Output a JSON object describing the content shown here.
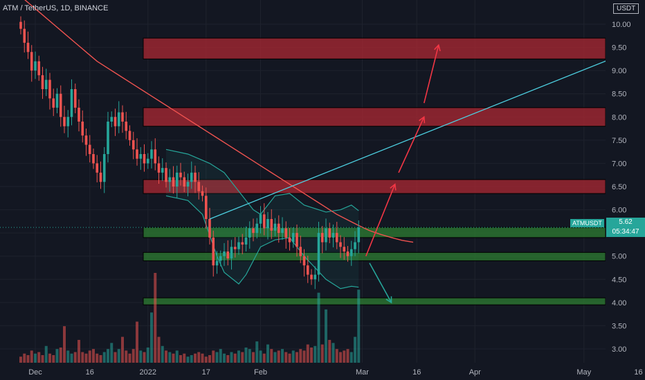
{
  "header": {
    "title": "ATM / TetherUS, 1D, BINANCE"
  },
  "currency": "USDT",
  "last_price": {
    "symbol": "ATMUSDT",
    "price": "5.62",
    "countdown": "05:34:47",
    "value": 5.62
  },
  "chart_data": {
    "type": "candlestick",
    "title": "ATM / TetherUS, 1D, BINANCE",
    "ylim": [
      2.75,
      10.1
    ],
    "y_ticks": [
      3.0,
      3.5,
      4.0,
      4.5,
      5.0,
      5.5,
      6.0,
      6.5,
      7.0,
      7.5,
      8.0,
      8.5,
      9.0,
      9.5,
      10.0
    ],
    "y_tick_labels": [
      "3.00",
      "3.50",
      "4.00",
      "4.50",
      "5.00",
      "5.50",
      "6.00",
      "6.50",
      "7.00",
      "7.50",
      "8.00",
      "8.50",
      "9.00",
      "9.50",
      "10.00"
    ],
    "x_ticks": [
      {
        "label": "Dec",
        "day": 4
      },
      {
        "label": "16",
        "day": 19
      },
      {
        "label": "2022",
        "day": 35
      },
      {
        "label": "17",
        "day": 51
      },
      {
        "label": "Feb",
        "day": 66
      },
      {
        "label": "Mar",
        "day": 94
      },
      {
        "label": "16",
        "day": 109
      },
      {
        "label": "Apr",
        "day": 125
      },
      {
        "label": "May",
        "day": 155
      },
      {
        "label": "16",
        "day": 170
      }
    ],
    "closes": [
      9.9,
      9.6,
      9.4,
      9.0,
      9.2,
      8.9,
      8.6,
      8.8,
      8.4,
      8.2,
      8.5,
      8.0,
      7.8,
      8.0,
      8.6,
      8.2,
      7.9,
      7.6,
      7.4,
      7.2,
      7.0,
      6.8,
      6.6,
      7.2,
      7.9,
      8.0,
      7.8,
      8.1,
      7.9,
      7.7,
      7.5,
      7.3,
      7.1,
      7.2,
      7.0,
      7.1,
      7.3,
      7.0,
      6.8,
      6.9,
      6.6,
      6.7,
      6.5,
      6.8,
      6.7,
      6.5,
      6.6,
      6.8,
      6.6,
      6.4,
      6.3,
      5.8,
      5.4,
      4.8,
      4.9,
      5.0,
      5.1,
      4.95,
      5.2,
      5.15,
      5.3,
      5.25,
      5.4,
      5.6,
      5.5,
      5.7,
      5.9,
      5.6,
      5.8,
      5.55,
      5.7,
      5.5,
      5.6,
      5.4,
      5.3,
      5.5,
      5.2,
      5.0,
      4.8,
      4.6,
      4.5,
      4.6,
      5.5,
      5.3,
      5.6,
      5.4,
      5.5,
      5.3,
      5.2,
      5.1,
      5.0,
      5.15,
      5.3,
      5.62
    ],
    "volumes": [
      0.4,
      0.6,
      0.5,
      0.8,
      0.6,
      0.7,
      0.5,
      1.1,
      0.6,
      0.5,
      0.9,
      1.0,
      2.4,
      0.8,
      0.6,
      0.7,
      1.5,
      0.7,
      0.6,
      0.8,
      0.9,
      0.6,
      0.5,
      0.7,
      0.9,
      1.3,
      0.7,
      0.9,
      1.7,
      0.8,
      0.6,
      0.9,
      2.7,
      0.8,
      0.7,
      1.0,
      3.3,
      5.9,
      1.7,
      1.1,
      0.8,
      0.7,
      0.6,
      0.8,
      0.5,
      0.6,
      0.4,
      0.5,
      0.6,
      0.7,
      0.6,
      0.4,
      0.5,
      0.8,
      0.7,
      0.9,
      0.6,
      0.5,
      0.7,
      0.6,
      0.8,
      0.7,
      1.0,
      0.9,
      0.7,
      1.4,
      0.8,
      0.6,
      1.2,
      0.9,
      0.7,
      0.8,
      0.9,
      0.7,
      0.6,
      0.8,
      0.7,
      0.9,
      0.8,
      1.2,
      1.0,
      1.1,
      4.6,
      1.2,
      3.5,
      1.5,
      1.3,
      0.9,
      0.7,
      0.8,
      0.9,
      0.7,
      1.7,
      4.8
    ],
    "volume_max": 5.9,
    "moving_average": [
      10.6,
      10.4,
      10.2,
      10.0,
      9.8,
      9.6,
      9.4,
      9.2,
      9.05,
      8.9,
      8.75,
      8.6,
      8.45,
      8.3,
      8.15,
      8.0,
      7.85,
      7.7,
      7.55,
      7.4,
      7.25,
      7.1,
      6.95,
      6.8,
      6.65,
      6.5,
      6.35,
      6.2,
      6.05,
      5.9,
      5.78,
      5.66,
      5.55,
      5.47,
      5.4,
      5.34,
      5.3
    ],
    "ma_days": [
      0,
      3,
      6,
      9,
      12,
      15,
      18,
      21,
      24,
      27,
      30,
      33,
      36,
      39,
      42,
      45,
      48,
      51,
      54,
      57,
      60,
      63,
      66,
      69,
      72,
      75,
      78,
      81,
      84,
      87,
      90,
      93,
      96,
      99,
      102,
      105,
      108
    ],
    "bollinger_upper": [
      [
        40,
        7.3
      ],
      [
        46,
        7.2
      ],
      [
        52,
        7.0
      ],
      [
        56,
        6.8
      ],
      [
        60,
        6.4
      ],
      [
        64,
        6.0
      ],
      [
        66,
        5.9
      ],
      [
        70,
        6.3
      ],
      [
        74,
        6.35
      ],
      [
        78,
        6.1
      ],
      [
        84,
        5.95
      ],
      [
        88,
        6.0
      ],
      [
        91,
        6.1
      ],
      [
        93,
        5.98
      ]
    ],
    "bollinger_lower": [
      [
        40,
        6.3
      ],
      [
        46,
        6.2
      ],
      [
        50,
        5.9
      ],
      [
        54,
        5.0
      ],
      [
        56,
        4.65
      ],
      [
        60,
        4.4
      ],
      [
        62,
        4.6
      ],
      [
        66,
        5.2
      ],
      [
        70,
        5.35
      ],
      [
        74,
        5.4
      ],
      [
        78,
        5.0
      ],
      [
        84,
        4.5
      ],
      [
        88,
        4.3
      ],
      [
        91,
        4.35
      ],
      [
        93,
        4.33
      ]
    ],
    "zones": [
      {
        "kind": "resistance",
        "low": 9.25,
        "high": 9.7
      },
      {
        "kind": "resistance",
        "low": 7.8,
        "high": 8.2
      },
      {
        "kind": "resistance",
        "low": 6.35,
        "high": 6.65
      },
      {
        "kind": "support",
        "low": 5.4,
        "high": 5.62
      },
      {
        "kind": "support",
        "low": 4.9,
        "high": 5.08
      },
      {
        "kind": "support",
        "low": 3.95,
        "high": 4.1
      }
    ],
    "trendline": {
      "start": [
        52,
        5.8
      ],
      "end": [
        180,
        9.8
      ]
    },
    "arrows": [
      {
        "direction": "up",
        "from": [
          95,
          5.0
        ],
        "to": [
          103,
          6.55
        ]
      },
      {
        "direction": "up",
        "from": [
          104,
          6.8
        ],
        "to": [
          111,
          8.0
        ]
      },
      {
        "direction": "up",
        "from": [
          111,
          8.3
        ],
        "to": [
          115,
          9.55
        ]
      },
      {
        "direction": "down",
        "from": [
          96,
          4.85
        ],
        "to": [
          102,
          4.0
        ]
      }
    ],
    "xlabel": "",
    "ylabel": "",
    "grid": true
  }
}
